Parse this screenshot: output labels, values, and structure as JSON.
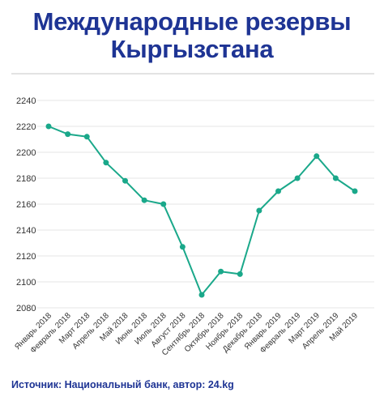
{
  "title": "Международные резервы Кыргызстана",
  "source": "Источник: Национальный банк, автор: 24.kg",
  "colors": {
    "title": "#1e3494",
    "line": "#1aa88a",
    "grid": "#e6e6e6",
    "source": "#1e3494"
  },
  "chart_data": {
    "type": "line",
    "title": "Международные резервы Кыргызстана",
    "xlabel": "",
    "ylabel": "",
    "categories": [
      "Январь 2018",
      "Февраль 2018",
      "Март 2018",
      "Апрель 2018",
      "Май 2018",
      "Июнь 2018",
      "Июль 2018",
      "Август 2018",
      "Сентябрь 2018",
      "Октябрь 2018",
      "Ноябрь 2018",
      "Декабрь 2018",
      "Январь 2019",
      "Февраль 2019",
      "Март 2019",
      "Апрель 2019",
      "Май 2019"
    ],
    "series": [
      {
        "values": [
          2220,
          2214,
          2212,
          2192,
          2178,
          2163,
          2160,
          2127,
          2090,
          2108,
          2106,
          2155,
          2170,
          2180,
          2197,
          2180,
          2170
        ]
      }
    ],
    "ylim": [
      2080,
      2240
    ],
    "yticks": [
      2080,
      2100,
      2120,
      2140,
      2160,
      2180,
      2200,
      2220,
      2240
    ],
    "grid": true,
    "legend": "none"
  }
}
